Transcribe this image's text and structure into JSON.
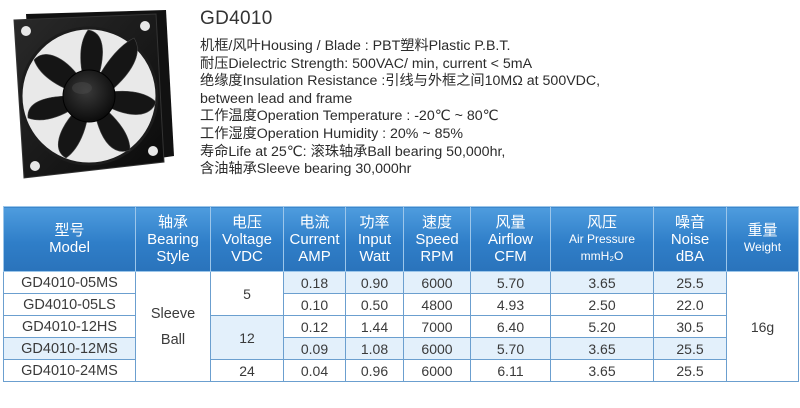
{
  "product": {
    "title": "GD4010",
    "specs": [
      "机框/风叶Housing / Blade :  PBT塑料Plastic P.B.T.",
      "耐压Dielectric Strength:  500VAC/ min, current < 5mA",
      "绝缘度Insulation Resistance :引线与外框之间10MΩ at 500VDC,",
      "between lead and frame",
      "工作温度Operation Temperature : -20℃ ~ 80℃",
      "工作湿度Operation Humidity : 20% ~ 85%",
      "寿命Life at 25℃: 滚珠轴承Ball bearing 50,000hr,",
      "含油轴承Sleeve bearing  30,000hr"
    ]
  },
  "table": {
    "headers": {
      "model": [
        "型号",
        "Model"
      ],
      "bearing": [
        "轴承",
        "Bearing",
        "Style"
      ],
      "voltage": [
        "电压",
        "Voltage",
        "VDC"
      ],
      "current": [
        "电流",
        "Current",
        "AMP"
      ],
      "power": [
        "功率",
        "Input",
        "Watt"
      ],
      "speed": [
        "速度",
        "Speed",
        "RPM"
      ],
      "airflow": [
        "风量",
        "Airflow",
        "CFM"
      ],
      "pressure": [
        "风压",
        "Air Pressure",
        "mmH₂O"
      ],
      "noise": [
        "噪音",
        "Noise",
        "dBA"
      ],
      "weight": [
        "重量",
        "Weight"
      ]
    },
    "bearing_style": [
      "Sleeve",
      "Ball"
    ],
    "weight": "16g",
    "voltage_groups": [
      "5",
      "12",
      "24"
    ],
    "rows": [
      {
        "model": "GD4010-05MS",
        "current": "0.18",
        "power": "0.90",
        "speed": "6000",
        "airflow": "5.70",
        "pressure": "3.65",
        "noise": "25.5"
      },
      {
        "model": "GD4010-05LS",
        "current": "0.10",
        "power": "0.50",
        "speed": "4800",
        "airflow": "4.93",
        "pressure": "2.50",
        "noise": "22.0"
      },
      {
        "model": "GD4010-12HS",
        "current": "0.12",
        "power": "1.44",
        "speed": "7000",
        "airflow": "6.40",
        "pressure": "5.20",
        "noise": "30.5"
      },
      {
        "model": "GD4010-12MS",
        "current": "0.09",
        "power": "1.08",
        "speed": "6000",
        "airflow": "5.70",
        "pressure": "3.65",
        "noise": "25.5"
      },
      {
        "model": "GD4010-24MS",
        "current": "0.04",
        "power": "0.96",
        "speed": "6000",
        "airflow": "6.11",
        "pressure": "3.65",
        "noise": "25.5"
      }
    ]
  }
}
